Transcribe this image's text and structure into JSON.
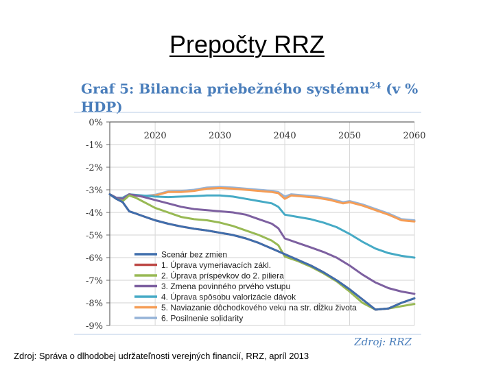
{
  "slide": {
    "title": "Prepočty RRZ",
    "footer": "Zdroj: Správa o dlhodobej udržateľnosti verejných financií, RRZ, apríl 2013"
  },
  "graph": {
    "title_main": "Graf 5: Bilancia priebežného systému",
    "title_sup": "24",
    "title_tail": " (v % HDP)",
    "source": "Zdroj: RRZ"
  },
  "chart_data": {
    "type": "line",
    "x_ticks": [
      "2020",
      "2030",
      "2040",
      "2050",
      "2060"
    ],
    "y_ticks": [
      "0%",
      "-1%",
      "-2%",
      "-3%",
      "-4%",
      "-5%",
      "-6%",
      "-7%",
      "-8%",
      "-9%"
    ],
    "xlim": [
      2013,
      2060
    ],
    "ylim": [
      -9,
      0
    ],
    "grid": true,
    "legend_position": "bottom-left",
    "series": [
      {
        "name": "Scenár bez zmien",
        "color": "#3f6eac",
        "x": [
          2013,
          2014,
          2015,
          2016,
          2017,
          2018,
          2019,
          2020,
          2022,
          2024,
          2026,
          2028,
          2030,
          2032,
          2034,
          2036,
          2038,
          2040,
          2042,
          2044,
          2046,
          2048,
          2050,
          2052,
          2054,
          2056,
          2058,
          2060
        ],
        "y": [
          -3.2,
          -3.4,
          -3.55,
          -3.95,
          -4.05,
          -4.15,
          -4.25,
          -4.35,
          -4.5,
          -4.62,
          -4.72,
          -4.8,
          -4.9,
          -5.0,
          -5.15,
          -5.35,
          -5.6,
          -5.85,
          -6.1,
          -6.35,
          -6.65,
          -7.0,
          -7.4,
          -7.85,
          -8.3,
          -8.25,
          -8.0,
          -7.8
        ]
      },
      {
        "name": "1. Úprava vymeriavacích zákl.",
        "color": "#be4b48",
        "x": [
          2013,
          2014,
          2015,
          2016,
          2017,
          2018,
          2019,
          2020,
          2022,
          2024,
          2026,
          2028,
          2030,
          2032,
          2034,
          2036,
          2038,
          2040,
          2042,
          2044,
          2046,
          2048,
          2050,
          2052,
          2054,
          2056,
          2058,
          2060
        ],
        "y": [
          -3.2,
          -3.4,
          -3.55,
          -3.95,
          -4.05,
          -4.15,
          -4.25,
          -4.35,
          -4.5,
          -4.62,
          -4.72,
          -4.8,
          -4.9,
          -5.0,
          -5.15,
          -5.35,
          -5.6,
          -5.85,
          -6.1,
          -6.35,
          -6.65,
          -7.0,
          -7.4,
          -7.85,
          -8.3,
          -8.25,
          -8.0,
          -7.8
        ]
      },
      {
        "name": "2. Úprava príspevkov do 2. piliera",
        "color": "#98b954",
        "x": [
          2013,
          2014,
          2015,
          2016,
          2017,
          2018,
          2019,
          2020,
          2022,
          2024,
          2026,
          2028,
          2030,
          2032,
          2034,
          2036,
          2038,
          2039,
          2040,
          2042,
          2044,
          2046,
          2048,
          2050,
          2052,
          2054,
          2056,
          2058,
          2060
        ],
        "y": [
          -3.2,
          -3.4,
          -3.5,
          -3.25,
          -3.35,
          -3.5,
          -3.65,
          -3.8,
          -4.0,
          -4.2,
          -4.3,
          -4.35,
          -4.45,
          -4.6,
          -4.8,
          -5.0,
          -5.25,
          -5.45,
          -5.95,
          -6.15,
          -6.4,
          -6.7,
          -7.05,
          -7.5,
          -8.0,
          -8.3,
          -8.25,
          -8.15,
          -8.05
        ]
      },
      {
        "name": "3. Zmena povinného prvého vstupu",
        "color": "#7d60a0",
        "x": [
          2013,
          2014,
          2015,
          2016,
          2018,
          2020,
          2022,
          2024,
          2026,
          2028,
          2030,
          2032,
          2034,
          2036,
          2038,
          2039,
          2040,
          2042,
          2044,
          2046,
          2048,
          2050,
          2052,
          2054,
          2056,
          2058,
          2060
        ],
        "y": [
          -3.2,
          -3.35,
          -3.4,
          -3.2,
          -3.3,
          -3.45,
          -3.6,
          -3.75,
          -3.85,
          -3.9,
          -3.95,
          -4.0,
          -4.1,
          -4.3,
          -4.5,
          -4.7,
          -5.15,
          -5.35,
          -5.55,
          -5.75,
          -6.0,
          -6.35,
          -6.75,
          -7.1,
          -7.35,
          -7.5,
          -7.6
        ]
      },
      {
        "name": "4. Úprava spôsobu valorizácie dávok",
        "color": "#46aac5",
        "x": [
          2013,
          2014,
          2015,
          2016,
          2018,
          2020,
          2022,
          2024,
          2026,
          2028,
          2030,
          2032,
          2034,
          2036,
          2038,
          2039,
          2040,
          2042,
          2044,
          2046,
          2048,
          2050,
          2052,
          2054,
          2056,
          2058,
          2060
        ],
        "y": [
          -3.2,
          -3.35,
          -3.35,
          -3.2,
          -3.25,
          -3.3,
          -3.32,
          -3.3,
          -3.28,
          -3.25,
          -3.25,
          -3.3,
          -3.4,
          -3.5,
          -3.6,
          -3.75,
          -4.1,
          -4.2,
          -4.3,
          -4.45,
          -4.65,
          -4.95,
          -5.3,
          -5.6,
          -5.8,
          -5.92,
          -6.0
        ]
      },
      {
        "name": "5. Naviazanie dôchodkového veku na str. dĺžku života",
        "color": "#f59d56",
        "x": [
          2013,
          2014,
          2015,
          2016,
          2018,
          2020,
          2022,
          2024,
          2026,
          2028,
          2030,
          2032,
          2034,
          2036,
          2038,
          2039,
          2040,
          2041,
          2043,
          2045,
          2047,
          2049,
          2050,
          2052,
          2054,
          2056,
          2058,
          2060
        ],
        "y": [
          -3.2,
          -3.35,
          -3.35,
          -3.2,
          -3.3,
          -3.25,
          -3.1,
          -3.1,
          -3.05,
          -2.95,
          -2.92,
          -2.95,
          -3.0,
          -3.05,
          -3.1,
          -3.15,
          -3.4,
          -3.25,
          -3.3,
          -3.35,
          -3.45,
          -3.6,
          -3.55,
          -3.7,
          -3.9,
          -4.1,
          -4.35,
          -4.4
        ]
      },
      {
        "name": "6. Posilnenie solidarity",
        "color": "#95b3d7",
        "x": [
          2013,
          2014,
          2015,
          2016,
          2018,
          2020,
          2022,
          2024,
          2026,
          2028,
          2030,
          2032,
          2034,
          2036,
          2038,
          2039,
          2040,
          2041,
          2043,
          2045,
          2047,
          2049,
          2050,
          2052,
          2054,
          2056,
          2058,
          2060
        ],
        "y": [
          -3.2,
          -3.35,
          -3.35,
          -3.2,
          -3.28,
          -3.22,
          -3.07,
          -3.05,
          -3.0,
          -2.9,
          -2.87,
          -2.9,
          -2.95,
          -3.0,
          -3.05,
          -3.1,
          -3.3,
          -3.2,
          -3.25,
          -3.3,
          -3.4,
          -3.55,
          -3.5,
          -3.65,
          -3.85,
          -4.05,
          -4.3,
          -4.35
        ]
      }
    ]
  }
}
